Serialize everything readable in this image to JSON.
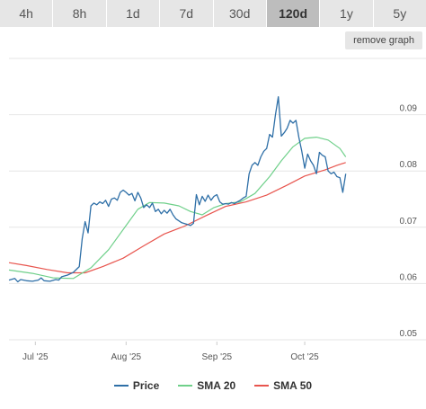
{
  "timeframes": {
    "tabs": [
      "4h",
      "8h",
      "1d",
      "7d",
      "30d",
      "120d",
      "1y",
      "5y"
    ],
    "active": "120d"
  },
  "remove_graph_label": "remove graph",
  "colors": {
    "price": "#2e6fa7",
    "sma20": "#6fd08a",
    "sma50": "#e8554e",
    "grid": "#e6e6e6",
    "active_tab": "#bdbdbd",
    "tab": "#e6e6e6"
  },
  "chart_data": {
    "type": "line",
    "title": "",
    "xlabel": "",
    "ylabel": "",
    "x_ticks": [
      "Jul '25",
      "Aug '25",
      "Sep '25",
      "Oct '25"
    ],
    "y_ticks": [
      "0.05",
      "0.06",
      "0.07",
      "0.08",
      "0.09"
    ],
    "ylim": [
      0.05,
      0.1
    ],
    "grid": true,
    "legend_position": "bottom",
    "series": [
      {
        "name": "Price",
        "points": [
          [
            "2025-06-22",
            0.0606
          ],
          [
            "2025-06-24",
            0.0609
          ],
          [
            "2025-06-25",
            0.0603
          ],
          [
            "2025-06-26",
            0.0607
          ],
          [
            "2025-06-28",
            0.0605
          ],
          [
            "2025-06-30",
            0.0604
          ],
          [
            "2025-07-02",
            0.0606
          ],
          [
            "2025-07-03",
            0.061
          ],
          [
            "2025-07-04",
            0.0605
          ],
          [
            "2025-07-06",
            0.0604
          ],
          [
            "2025-07-08",
            0.0607
          ],
          [
            "2025-07-09",
            0.0606
          ],
          [
            "2025-07-10",
            0.0612
          ],
          [
            "2025-07-12",
            0.0615
          ],
          [
            "2025-07-14",
            0.062
          ],
          [
            "2025-07-16",
            0.063
          ],
          [
            "2025-07-17",
            0.068
          ],
          [
            "2025-07-18",
            0.071
          ],
          [
            "2025-07-19",
            0.069
          ],
          [
            "2025-07-20",
            0.0738
          ],
          [
            "2025-07-21",
            0.0743
          ],
          [
            "2025-07-22",
            0.074
          ],
          [
            "2025-07-23",
            0.0745
          ],
          [
            "2025-07-24",
            0.0742
          ],
          [
            "2025-07-25",
            0.0748
          ],
          [
            "2025-07-26",
            0.0737
          ],
          [
            "2025-07-27",
            0.075
          ],
          [
            "2025-07-28",
            0.0752
          ],
          [
            "2025-07-29",
            0.0748
          ],
          [
            "2025-07-30",
            0.0762
          ],
          [
            "2025-07-31",
            0.0766
          ],
          [
            "2025-08-01",
            0.0762
          ],
          [
            "2025-08-02",
            0.0757
          ],
          [
            "2025-08-03",
            0.076
          ],
          [
            "2025-08-04",
            0.0747
          ],
          [
            "2025-08-05",
            0.0762
          ],
          [
            "2025-08-06",
            0.0752
          ],
          [
            "2025-08-07",
            0.0735
          ],
          [
            "2025-08-08",
            0.074
          ],
          [
            "2025-08-09",
            0.0735
          ],
          [
            "2025-08-10",
            0.0743
          ],
          [
            "2025-08-11",
            0.0728
          ],
          [
            "2025-08-12",
            0.0732
          ],
          [
            "2025-08-13",
            0.0724
          ],
          [
            "2025-08-14",
            0.073
          ],
          [
            "2025-08-15",
            0.0725
          ],
          [
            "2025-08-16",
            0.0732
          ],
          [
            "2025-08-17",
            0.0722
          ],
          [
            "2025-08-18",
            0.0715
          ],
          [
            "2025-08-20",
            0.0708
          ],
          [
            "2025-08-22",
            0.0705
          ],
          [
            "2025-08-23",
            0.0703
          ],
          [
            "2025-08-24",
            0.0707
          ],
          [
            "2025-08-25",
            0.0758
          ],
          [
            "2025-08-26",
            0.074
          ],
          [
            "2025-08-27",
            0.0755
          ],
          [
            "2025-08-28",
            0.0746
          ],
          [
            "2025-08-29",
            0.0757
          ],
          [
            "2025-08-30",
            0.0748
          ],
          [
            "2025-08-31",
            0.0755
          ],
          [
            "2025-09-01",
            0.0758
          ],
          [
            "2025-09-02",
            0.0745
          ],
          [
            "2025-09-03",
            0.0741
          ],
          [
            "2025-09-04",
            0.0742
          ],
          [
            "2025-09-05",
            0.0741
          ],
          [
            "2025-09-06",
            0.0744
          ],
          [
            "2025-09-07",
            0.0742
          ],
          [
            "2025-09-08",
            0.0745
          ],
          [
            "2025-09-09",
            0.0748
          ],
          [
            "2025-09-10",
            0.0752
          ],
          [
            "2025-09-11",
            0.0755
          ],
          [
            "2025-09-12",
            0.0795
          ],
          [
            "2025-09-13",
            0.081
          ],
          [
            "2025-09-14",
            0.0815
          ],
          [
            "2025-09-15",
            0.081
          ],
          [
            "2025-09-16",
            0.0825
          ],
          [
            "2025-09-17",
            0.0835
          ],
          [
            "2025-09-18",
            0.084
          ],
          [
            "2025-09-19",
            0.0865
          ],
          [
            "2025-09-20",
            0.086
          ],
          [
            "2025-09-21",
            0.09
          ],
          [
            "2025-09-22",
            0.0932
          ],
          [
            "2025-09-23",
            0.0862
          ],
          [
            "2025-09-24",
            0.0868
          ],
          [
            "2025-09-25",
            0.0876
          ],
          [
            "2025-09-26",
            0.089
          ],
          [
            "2025-09-27",
            0.0885
          ],
          [
            "2025-09-28",
            0.089
          ],
          [
            "2025-09-29",
            0.086
          ],
          [
            "2025-09-30",
            0.0835
          ],
          [
            "2025-10-01",
            0.0805
          ],
          [
            "2025-10-02",
            0.083
          ],
          [
            "2025-10-03",
            0.0818
          ],
          [
            "2025-10-04",
            0.081
          ],
          [
            "2025-10-05",
            0.0795
          ],
          [
            "2025-10-06",
            0.0833
          ],
          [
            "2025-10-07",
            0.0828
          ],
          [
            "2025-10-08",
            0.0825
          ],
          [
            "2025-10-09",
            0.08
          ],
          [
            "2025-10-10",
            0.0795
          ],
          [
            "2025-10-11",
            0.0798
          ],
          [
            "2025-10-12",
            0.079
          ],
          [
            "2025-10-13",
            0.0788
          ],
          [
            "2025-10-14",
            0.0762
          ],
          [
            "2025-10-15",
            0.0795
          ]
        ]
      },
      {
        "name": "SMA 20",
        "points": [
          [
            "2025-06-22",
            0.0624
          ],
          [
            "2025-06-30",
            0.0618
          ],
          [
            "2025-07-07",
            0.061
          ],
          [
            "2025-07-14",
            0.0609
          ],
          [
            "2025-07-20",
            0.0628
          ],
          [
            "2025-07-26",
            0.066
          ],
          [
            "2025-08-01",
            0.0703
          ],
          [
            "2025-08-05",
            0.0732
          ],
          [
            "2025-08-09",
            0.0744
          ],
          [
            "2025-08-14",
            0.0743
          ],
          [
            "2025-08-19",
            0.0738
          ],
          [
            "2025-08-23",
            0.0728
          ],
          [
            "2025-08-27",
            0.0722
          ],
          [
            "2025-08-31",
            0.0735
          ],
          [
            "2025-09-04",
            0.0742
          ],
          [
            "2025-09-09",
            0.0745
          ],
          [
            "2025-09-14",
            0.076
          ],
          [
            "2025-09-19",
            0.079
          ],
          [
            "2025-09-23",
            0.0818
          ],
          [
            "2025-09-27",
            0.0843
          ],
          [
            "2025-10-01",
            0.0858
          ],
          [
            "2025-10-05",
            0.086
          ],
          [
            "2025-10-09",
            0.0855
          ],
          [
            "2025-10-13",
            0.084
          ],
          [
            "2025-10-15",
            0.0825
          ]
        ]
      },
      {
        "name": "SMA 50",
        "points": [
          [
            "2025-06-22",
            0.0637
          ],
          [
            "2025-06-28",
            0.0632
          ],
          [
            "2025-07-05",
            0.0625
          ],
          [
            "2025-07-12",
            0.0619
          ],
          [
            "2025-07-18",
            0.0619
          ],
          [
            "2025-07-24",
            0.063
          ],
          [
            "2025-07-31",
            0.0645
          ],
          [
            "2025-08-07",
            0.0667
          ],
          [
            "2025-08-14",
            0.0688
          ],
          [
            "2025-08-21",
            0.0702
          ],
          [
            "2025-08-28",
            0.072
          ],
          [
            "2025-09-04",
            0.0737
          ],
          [
            "2025-09-11",
            0.0745
          ],
          [
            "2025-09-18",
            0.0757
          ],
          [
            "2025-09-25",
            0.0775
          ],
          [
            "2025-10-01",
            0.0791
          ],
          [
            "2025-10-08",
            0.0802
          ],
          [
            "2025-10-12",
            0.081
          ],
          [
            "2025-10-15",
            0.0815
          ]
        ]
      }
    ]
  }
}
